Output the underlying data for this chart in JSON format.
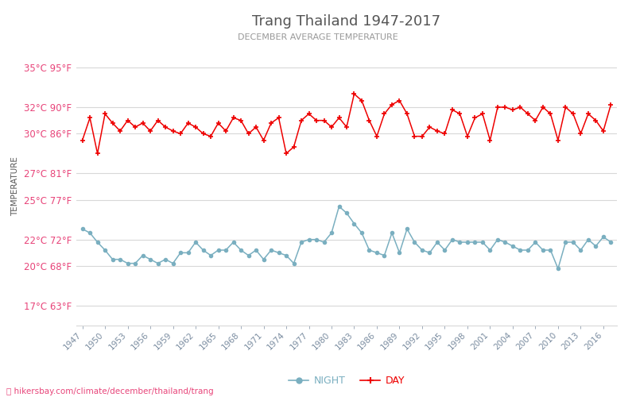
{
  "title": "Trang Thailand 1947-2017",
  "subtitle": "DECEMBER AVERAGE TEMPERATURE",
  "ylabel": "TEMPERATURE",
  "xlabel_url": "hikersbay.com/climate/december/thailand/trang",
  "yticks_c": [
    17,
    20,
    22,
    25,
    27,
    30,
    32,
    35
  ],
  "yticks_f": [
    63,
    68,
    72,
    77,
    81,
    86,
    90,
    95
  ],
  "ymin": 15.5,
  "ymax": 36.5,
  "title_color": "#555555",
  "subtitle_color": "#999999",
  "ylabel_color": "#555555",
  "ytick_color": "#e8457a",
  "xtick_color": "#7a8ca0",
  "grid_color": "#d8d8d8",
  "day_color": "#ee0000",
  "night_color": "#7aafc0",
  "background_color": "#ffffff",
  "years": [
    1947,
    1948,
    1949,
    1950,
    1951,
    1952,
    1953,
    1954,
    1955,
    1956,
    1957,
    1958,
    1959,
    1960,
    1961,
    1962,
    1963,
    1964,
    1965,
    1966,
    1967,
    1968,
    1969,
    1970,
    1971,
    1972,
    1973,
    1974,
    1975,
    1976,
    1977,
    1978,
    1979,
    1980,
    1981,
    1982,
    1983,
    1984,
    1985,
    1986,
    1987,
    1988,
    1989,
    1990,
    1991,
    1992,
    1993,
    1994,
    1995,
    1996,
    1997,
    1998,
    1999,
    2000,
    2001,
    2002,
    2003,
    2004,
    2005,
    2006,
    2007,
    2008,
    2009,
    2010,
    2011,
    2012,
    2013,
    2014,
    2015,
    2016,
    2017
  ],
  "day_temps": [
    29.5,
    31.2,
    28.5,
    31.5,
    30.8,
    30.2,
    31.0,
    30.5,
    30.8,
    30.2,
    31.0,
    30.5,
    30.2,
    30.0,
    30.8,
    30.5,
    30.0,
    29.8,
    30.8,
    30.2,
    31.2,
    31.0,
    30.0,
    30.5,
    29.5,
    30.8,
    31.2,
    28.5,
    29.0,
    31.0,
    31.5,
    31.0,
    31.0,
    30.5,
    31.2,
    30.5,
    33.0,
    32.5,
    31.0,
    29.8,
    31.5,
    32.2,
    32.5,
    31.5,
    29.8,
    29.8,
    30.5,
    30.2,
    30.0,
    31.8,
    31.5,
    29.8,
    31.2,
    31.5,
    29.5,
    32.0,
    32.0,
    31.8,
    32.0,
    31.5,
    31.0,
    32.0,
    31.5,
    29.5,
    32.0,
    31.5,
    30.0,
    31.5,
    31.0,
    30.2,
    32.2
  ],
  "night_temps": [
    22.8,
    22.5,
    21.8,
    21.2,
    20.5,
    20.5,
    20.2,
    20.2,
    20.8,
    20.5,
    20.2,
    20.5,
    20.2,
    21.0,
    21.0,
    21.8,
    21.2,
    20.8,
    21.2,
    21.2,
    21.8,
    21.2,
    20.8,
    21.2,
    20.5,
    21.2,
    21.0,
    20.8,
    20.2,
    21.8,
    22.0,
    22.0,
    21.8,
    22.5,
    24.5,
    24.0,
    23.2,
    22.5,
    21.2,
    21.0,
    20.8,
    22.5,
    21.0,
    22.8,
    21.8,
    21.2,
    21.0,
    21.8,
    21.2,
    22.0,
    21.8,
    21.8,
    21.8,
    21.8,
    21.2,
    22.0,
    21.8,
    21.5,
    21.2,
    21.2,
    21.8,
    21.2,
    21.2,
    19.8,
    21.8,
    21.8,
    21.2,
    22.0,
    21.5,
    22.2,
    21.8
  ]
}
